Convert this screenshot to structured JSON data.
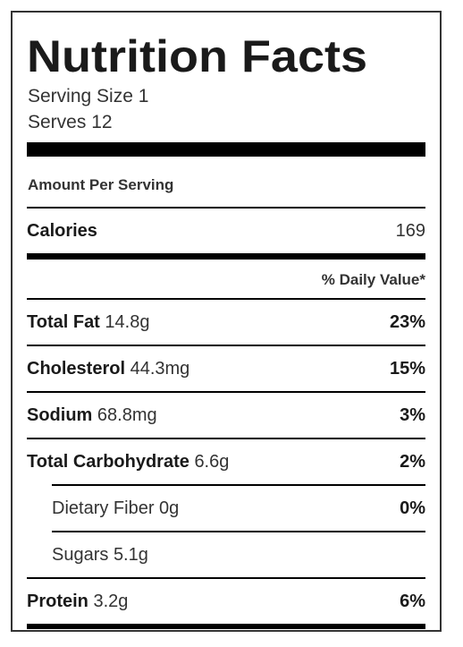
{
  "label": {
    "title": "Nutrition Facts",
    "serving_size": "Serving Size 1",
    "serves": "Serves 12",
    "amount_per_serving": "Amount Per Serving",
    "calories_label": "Calories",
    "calories_value": "169",
    "daily_value_header": "% Daily Value*"
  },
  "nutrients": [
    {
      "name": "Total Fat",
      "amount": "14.8g",
      "dv": "23%"
    },
    {
      "name": "Cholesterol",
      "amount": "44.3mg",
      "dv": "15%"
    },
    {
      "name": "Sodium",
      "amount": "68.8mg",
      "dv": "3%"
    },
    {
      "name": "Total Carbohydrate",
      "amount": "6.6g",
      "dv": "2%"
    },
    {
      "name": "Dietary Fiber",
      "amount": "0g",
      "dv": "0%"
    },
    {
      "name": "Sugars",
      "amount": "5.1g",
      "dv": ""
    },
    {
      "name": "Protein",
      "amount": "3.2g",
      "dv": "6%"
    }
  ]
}
